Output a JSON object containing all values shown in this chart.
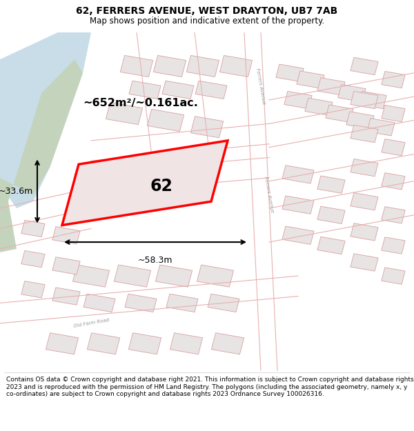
{
  "title": "62, FERRERS AVENUE, WEST DRAYTON, UB7 7AB",
  "subtitle": "Map shows position and indicative extent of the property.",
  "area_text": "~652m²/~0.161ac.",
  "label_62": "62",
  "dim_width": "~58.3m",
  "dim_height": "~33.6m",
  "footer": "Contains OS data © Crown copyright and database right 2021. This information is subject to Crown copyright and database rights 2023 and is reproduced with the permission of HM Land Registry. The polygons (including the associated geometry, namely x, y co-ordinates) are subject to Crown copyright and database rights 2023 Ordnance Survey 100026316.",
  "bg_color": "#f5eded",
  "road_color": "#e8b0b0",
  "water_color": "#c8dde8",
  "green_color": "#c4d4bc",
  "highlight_color": "#ff0000",
  "footer_fontsize": 6.5,
  "title_fontsize": 10,
  "subtitle_fontsize": 8.5
}
